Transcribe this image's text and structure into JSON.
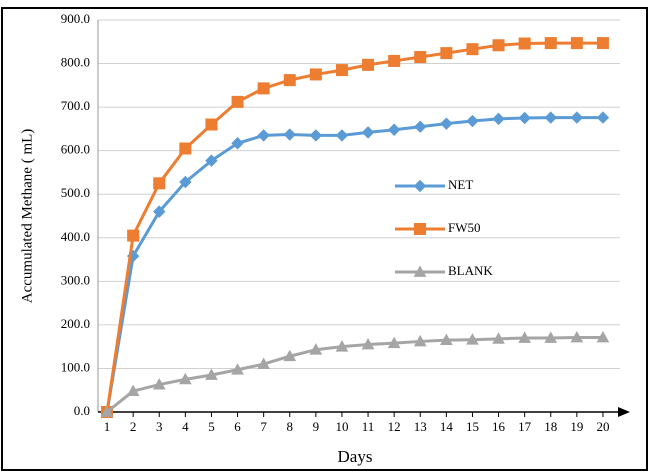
{
  "chart_data": {
    "type": "line",
    "x_label": "Days",
    "y_label": "Accumulated Methane ( mL)",
    "categories": [
      "1",
      "2",
      "3",
      "4",
      "5",
      "6",
      "7",
      "8",
      "9",
      "10",
      "11",
      "12",
      "13",
      "14",
      "15",
      "16",
      "17",
      "18",
      "19",
      "20"
    ],
    "series": [
      {
        "name": "NET",
        "color": "#5b9bd5",
        "marker": "diamond",
        "values": [
          0,
          358,
          460,
          528,
          577,
          617,
          635,
          637,
          635,
          635,
          642,
          648,
          655,
          662,
          668,
          673,
          675,
          676,
          676,
          676
        ]
      },
      {
        "name": "FW50",
        "color": "#ed7d31",
        "marker": "square",
        "values": [
          0,
          405,
          525,
          605,
          660,
          712,
          743,
          762,
          775,
          785,
          797,
          806,
          815,
          824,
          833,
          842,
          846,
          847,
          847,
          847
        ]
      },
      {
        "name": "BLANK",
        "color": "#a5a5a5",
        "marker": "triangle",
        "values": [
          0,
          48,
          63,
          75,
          85,
          97,
          110,
          128,
          143,
          150,
          155,
          158,
          162,
          165,
          166,
          168,
          170,
          170,
          171,
          171
        ]
      }
    ],
    "ylim": [
      0,
      900
    ],
    "yticks": [
      {
        "value": 0,
        "label": "0.0"
      },
      {
        "value": 100,
        "label": "100.0"
      },
      {
        "value": 200,
        "label": "200.0"
      },
      {
        "value": 300,
        "label": "300.0"
      },
      {
        "value": 400,
        "label": "400.0"
      },
      {
        "value": 500,
        "label": "500.0"
      },
      {
        "value": 600,
        "label": "600.0"
      },
      {
        "value": 700,
        "label": "700.0"
      },
      {
        "value": 800,
        "label": "800.0"
      },
      {
        "value": 900,
        "label": "900.0"
      }
    ],
    "grid": true,
    "legend": "right"
  }
}
